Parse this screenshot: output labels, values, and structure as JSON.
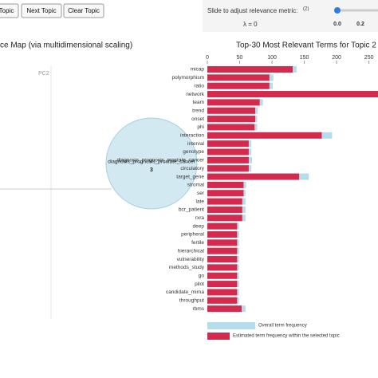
{
  "controls": {
    "prev_button": "Topic",
    "next_button": "Next Topic",
    "clear_button": "Clear Topic",
    "slider_label": "Slide to adjust relevance metric:",
    "slider_note": "(2)",
    "lambda": "λ = 0",
    "slider_ticks": [
      "0.0",
      "0.2"
    ]
  },
  "map": {
    "title": "ce Map (via multidimensional scaling)",
    "axis_label": "PC2",
    "bubble_label": "3",
    "hover_term": "diagnosis_prognosis_prostate_cancer"
  },
  "chart_data": {
    "type": "bar",
    "orientation": "horizontal",
    "title": "Top-30 Most Relevant Terms for Topic 2 (",
    "categories": [
      "micap",
      "polymorphism",
      "ratio",
      "network",
      "team",
      "trend",
      "onset",
      "phi",
      "interaction",
      "interval",
      "genotype",
      "diagnosis_prognosis_prostate_cancer",
      "circulatory",
      "target_gene",
      "stromal",
      "ser",
      "late",
      "bcr_patient",
      "rxra",
      "deep",
      "peripheral",
      "fertile",
      "hierarchical",
      "vulnerability",
      "methods_study",
      "go",
      "pilot",
      "candidate_mirna",
      "throughput",
      "rbms"
    ],
    "series": [
      {
        "name": "Overall term frequency",
        "color": "#b4dcea",
        "values": [
          138,
          102,
          101,
          280,
          86,
          78,
          77,
          77,
          193,
          68,
          68,
          69,
          68,
          157,
          60,
          59,
          59,
          59,
          59,
          49,
          49,
          49,
          49,
          49,
          49,
          49,
          49,
          49,
          49,
          59
        ]
      },
      {
        "name": "Estimated term frequency within the selected topic",
        "color": "#d42a4e",
        "values": [
          132,
          96,
          96,
          270,
          81,
          74,
          74,
          73,
          177,
          64,
          64,
          64,
          64,
          142,
          56,
          56,
          54,
          54,
          54,
          46,
          46,
          46,
          46,
          46,
          46,
          46,
          46,
          46,
          46,
          53
        ]
      }
    ],
    "xlim": [
      0,
      264
    ],
    "xticks": [
      0,
      50,
      100,
      150,
      200,
      250
    ]
  }
}
